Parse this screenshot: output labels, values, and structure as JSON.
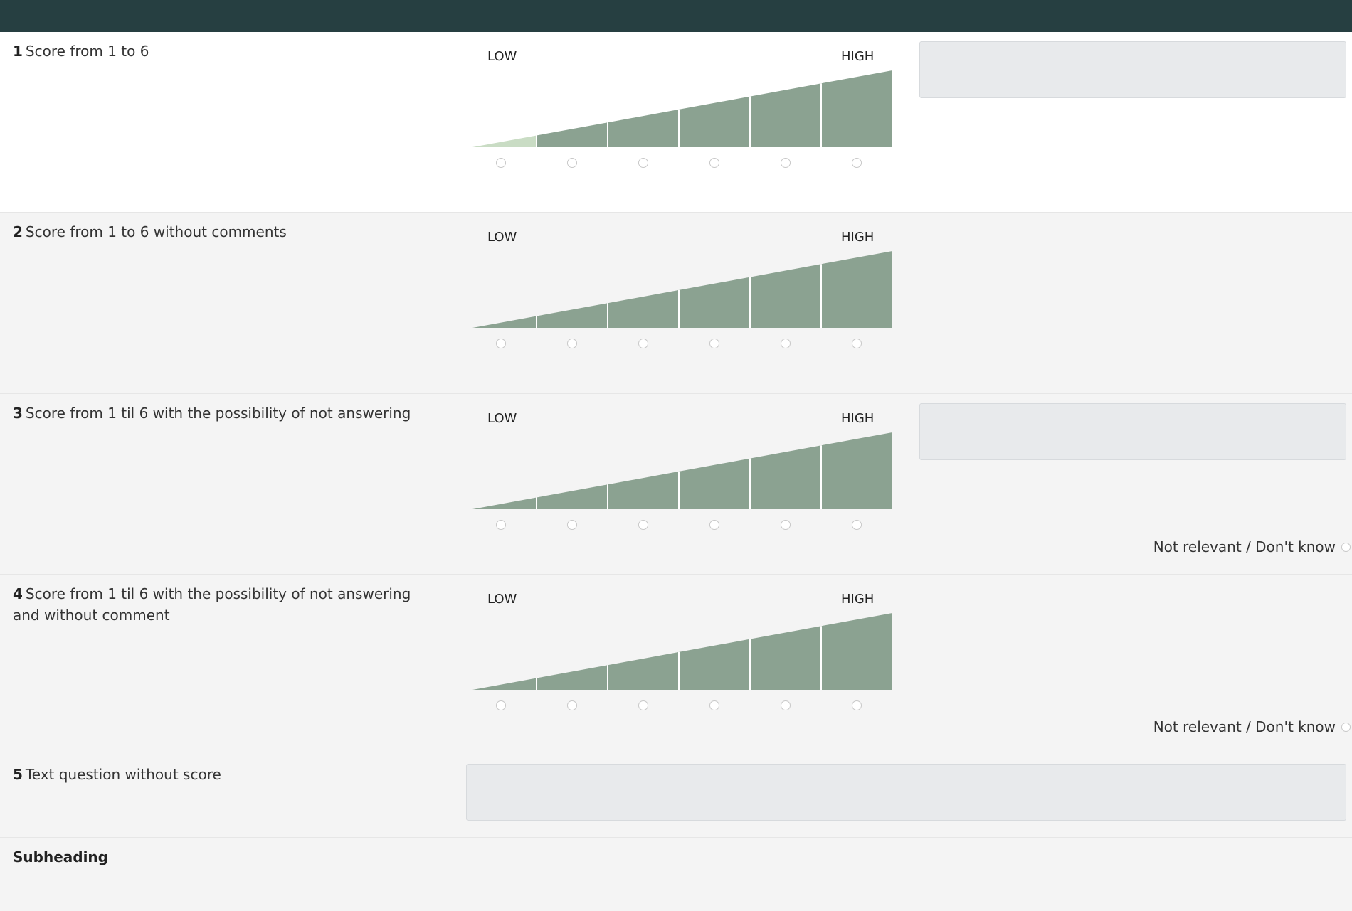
{
  "colors": {
    "topbar": "#263f41",
    "segment": "#8ba291",
    "segment_selected": "#c9dcc4",
    "comment_box": "#e8eaec"
  },
  "scale_labels": {
    "low": "LOW",
    "high": "HIGH"
  },
  "na_label": "Not relevant / Don't know",
  "questions": [
    {
      "num": "1",
      "text": "Score from 1 to 6",
      "has_comment": true,
      "has_na": false,
      "selected_segment": 1
    },
    {
      "num": "2",
      "text": "Score from 1 to 6 without comments",
      "has_comment": false,
      "has_na": false,
      "selected_segment": null
    },
    {
      "num": "3",
      "text": "Score from 1 til 6 with the possibility of not answering",
      "has_comment": true,
      "has_na": true,
      "selected_segment": null
    },
    {
      "num": "4",
      "text": "Score from 1 til 6 with the possibility of not answering and without comment",
      "has_comment": false,
      "has_na": true,
      "selected_segment": null
    },
    {
      "num": "5",
      "text": "Text question without score",
      "type": "text"
    }
  ],
  "subheading": "Subheading"
}
